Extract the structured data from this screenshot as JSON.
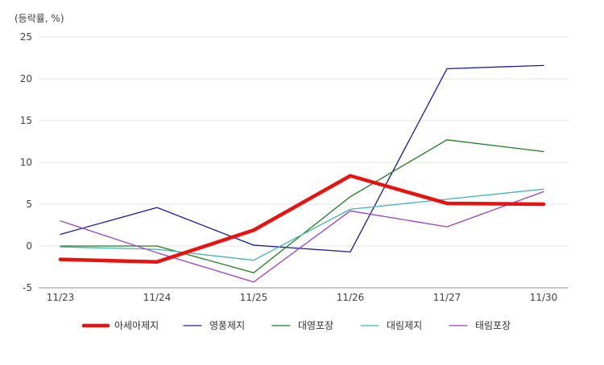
{
  "chart_data": {
    "type": "line",
    "unit_label": "(등락률, %)",
    "categories": [
      "11/23",
      "11/24",
      "11/25",
      "11/26",
      "11/27",
      "11/30"
    ],
    "ylim": [
      -5,
      25
    ],
    "yticks": [
      -5,
      0,
      5,
      10,
      15,
      20,
      25
    ],
    "grid": true,
    "legend_position": "bottom",
    "series": [
      {
        "name": "아세아제지",
        "color": "#e8130f",
        "values": [
          -1.6,
          -1.9,
          1.9,
          8.4,
          5.1,
          5.0
        ],
        "emphasis": true
      },
      {
        "name": "영풍제지",
        "color": "#1a1aa8",
        "values": [
          1.4,
          4.6,
          0.1,
          -0.7,
          21.2,
          21.6
        ]
      },
      {
        "name": "대영포장",
        "color": "#1e7d1e",
        "values": [
          0.0,
          0.0,
          -3.2,
          5.9,
          12.7,
          11.3
        ]
      },
      {
        "name": "대림제지",
        "color": "#3fb5b5",
        "values": [
          -0.1,
          -0.4,
          -1.7,
          4.4,
          5.6,
          6.8
        ]
      },
      {
        "name": "태림포장",
        "color": "#9b3fc8",
        "values": [
          3.0,
          -0.8,
          -4.3,
          4.2,
          2.3,
          6.5
        ]
      }
    ]
  }
}
